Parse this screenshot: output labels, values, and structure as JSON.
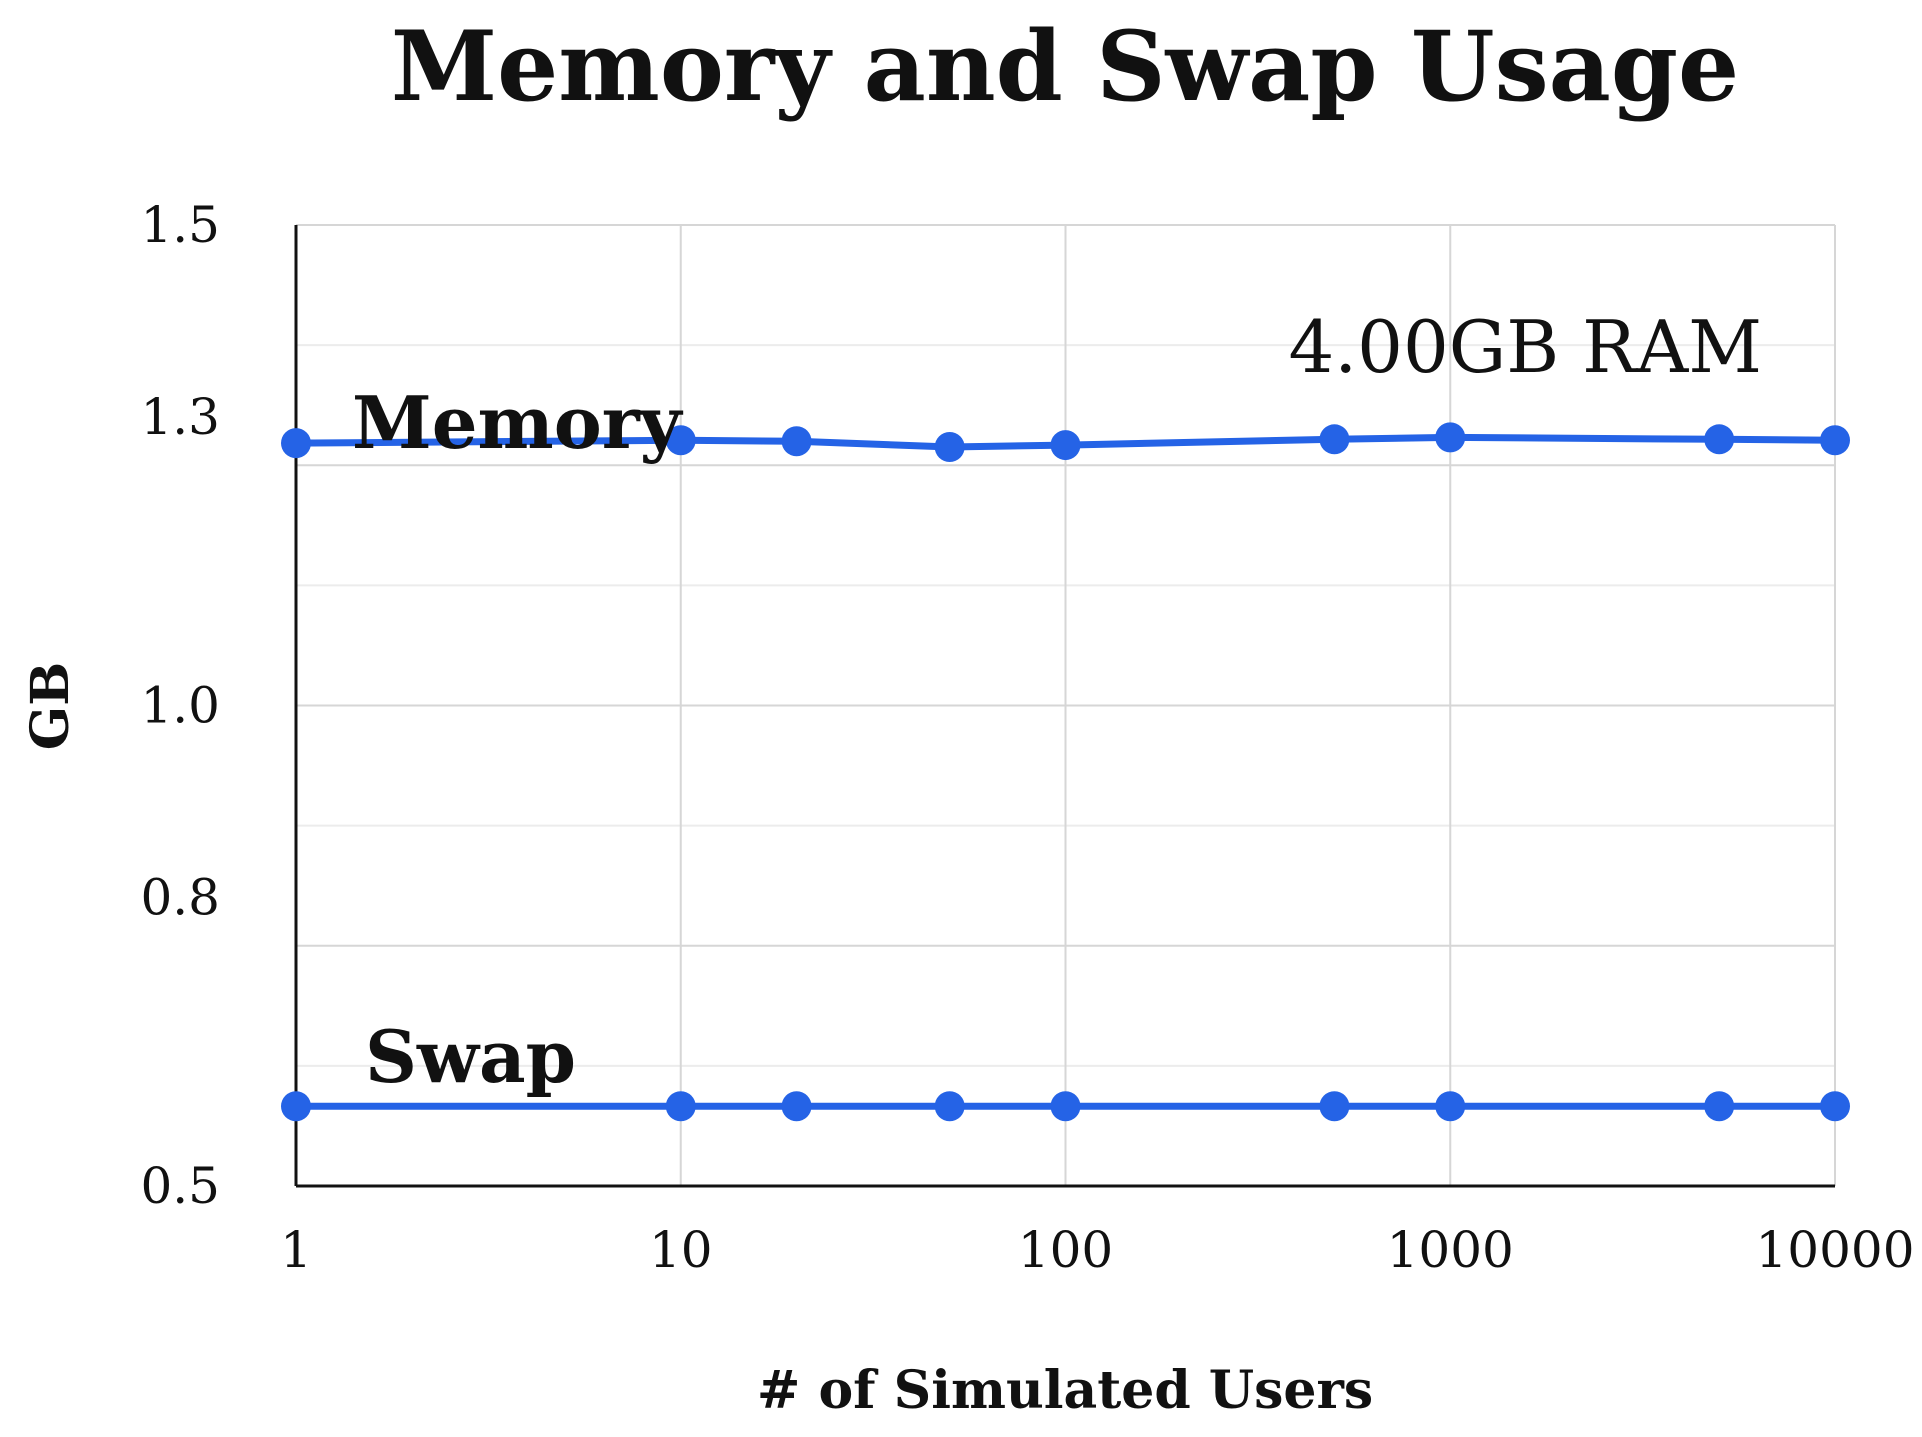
{
  "chart_data": {
    "type": "line",
    "title": "Memory and Swap Usage",
    "xlabel": "# of Simulated Users",
    "ylabel": "GB",
    "x_scale": "log",
    "xlim": [
      1,
      10000
    ],
    "ylim": [
      0.5,
      1.5
    ],
    "x_ticks": [
      "1",
      "10",
      "100",
      "1000",
      "10000"
    ],
    "y_ticks": [
      "0.5",
      "0.8",
      "1.0",
      "1.3",
      "1.5"
    ],
    "grid": true,
    "annotation": "4.00GB RAM",
    "color": "#2563e6",
    "series": [
      {
        "name": "Memory",
        "x": [
          1,
          10,
          20,
          50,
          100,
          500,
          1000,
          5000,
          10000
        ],
        "y": [
          1.273,
          1.276,
          1.275,
          1.269,
          1.271,
          1.277,
          1.279,
          1.277,
          1.276
        ]
      },
      {
        "name": "Swap",
        "x": [
          1,
          10,
          20,
          50,
          100,
          500,
          1000,
          5000,
          10000
        ],
        "y": [
          0.583,
          0.583,
          0.583,
          0.583,
          0.583,
          0.583,
          0.583,
          0.583,
          0.583
        ]
      }
    ]
  }
}
